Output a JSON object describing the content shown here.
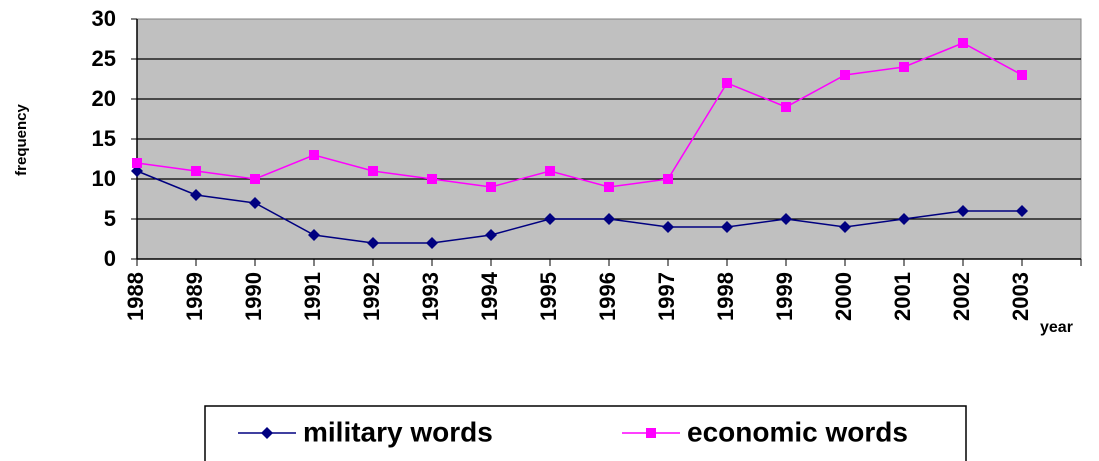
{
  "chart_data": {
    "type": "line",
    "x_label": "year",
    "y_label": "frequency",
    "categories": [
      "1988",
      "1989",
      "1990",
      "1991",
      "1992",
      "1993",
      "1994",
      "1995",
      "1996",
      "1997",
      "1998",
      "1999",
      "2000",
      "2001",
      "2002",
      "2003"
    ],
    "series": [
      {
        "name": "military words",
        "color": "#000080",
        "marker": "diamond",
        "values": [
          11,
          8,
          7,
          3,
          2,
          2,
          3,
          5,
          5,
          4,
          4,
          5,
          4,
          5,
          6,
          6
        ]
      },
      {
        "name": "economic words",
        "color": "#ff00ff",
        "marker": "square",
        "values": [
          12,
          11,
          10,
          13,
          11,
          10,
          9,
          11,
          9,
          10,
          22,
          19,
          23,
          24,
          27,
          23
        ]
      }
    ],
    "ylim": [
      0,
      30
    ],
    "yticks": [
      0,
      5,
      10,
      15,
      20,
      25,
      30
    ],
    "grid": true,
    "plot_background": "#c0c0c0",
    "legend": "bottom"
  }
}
